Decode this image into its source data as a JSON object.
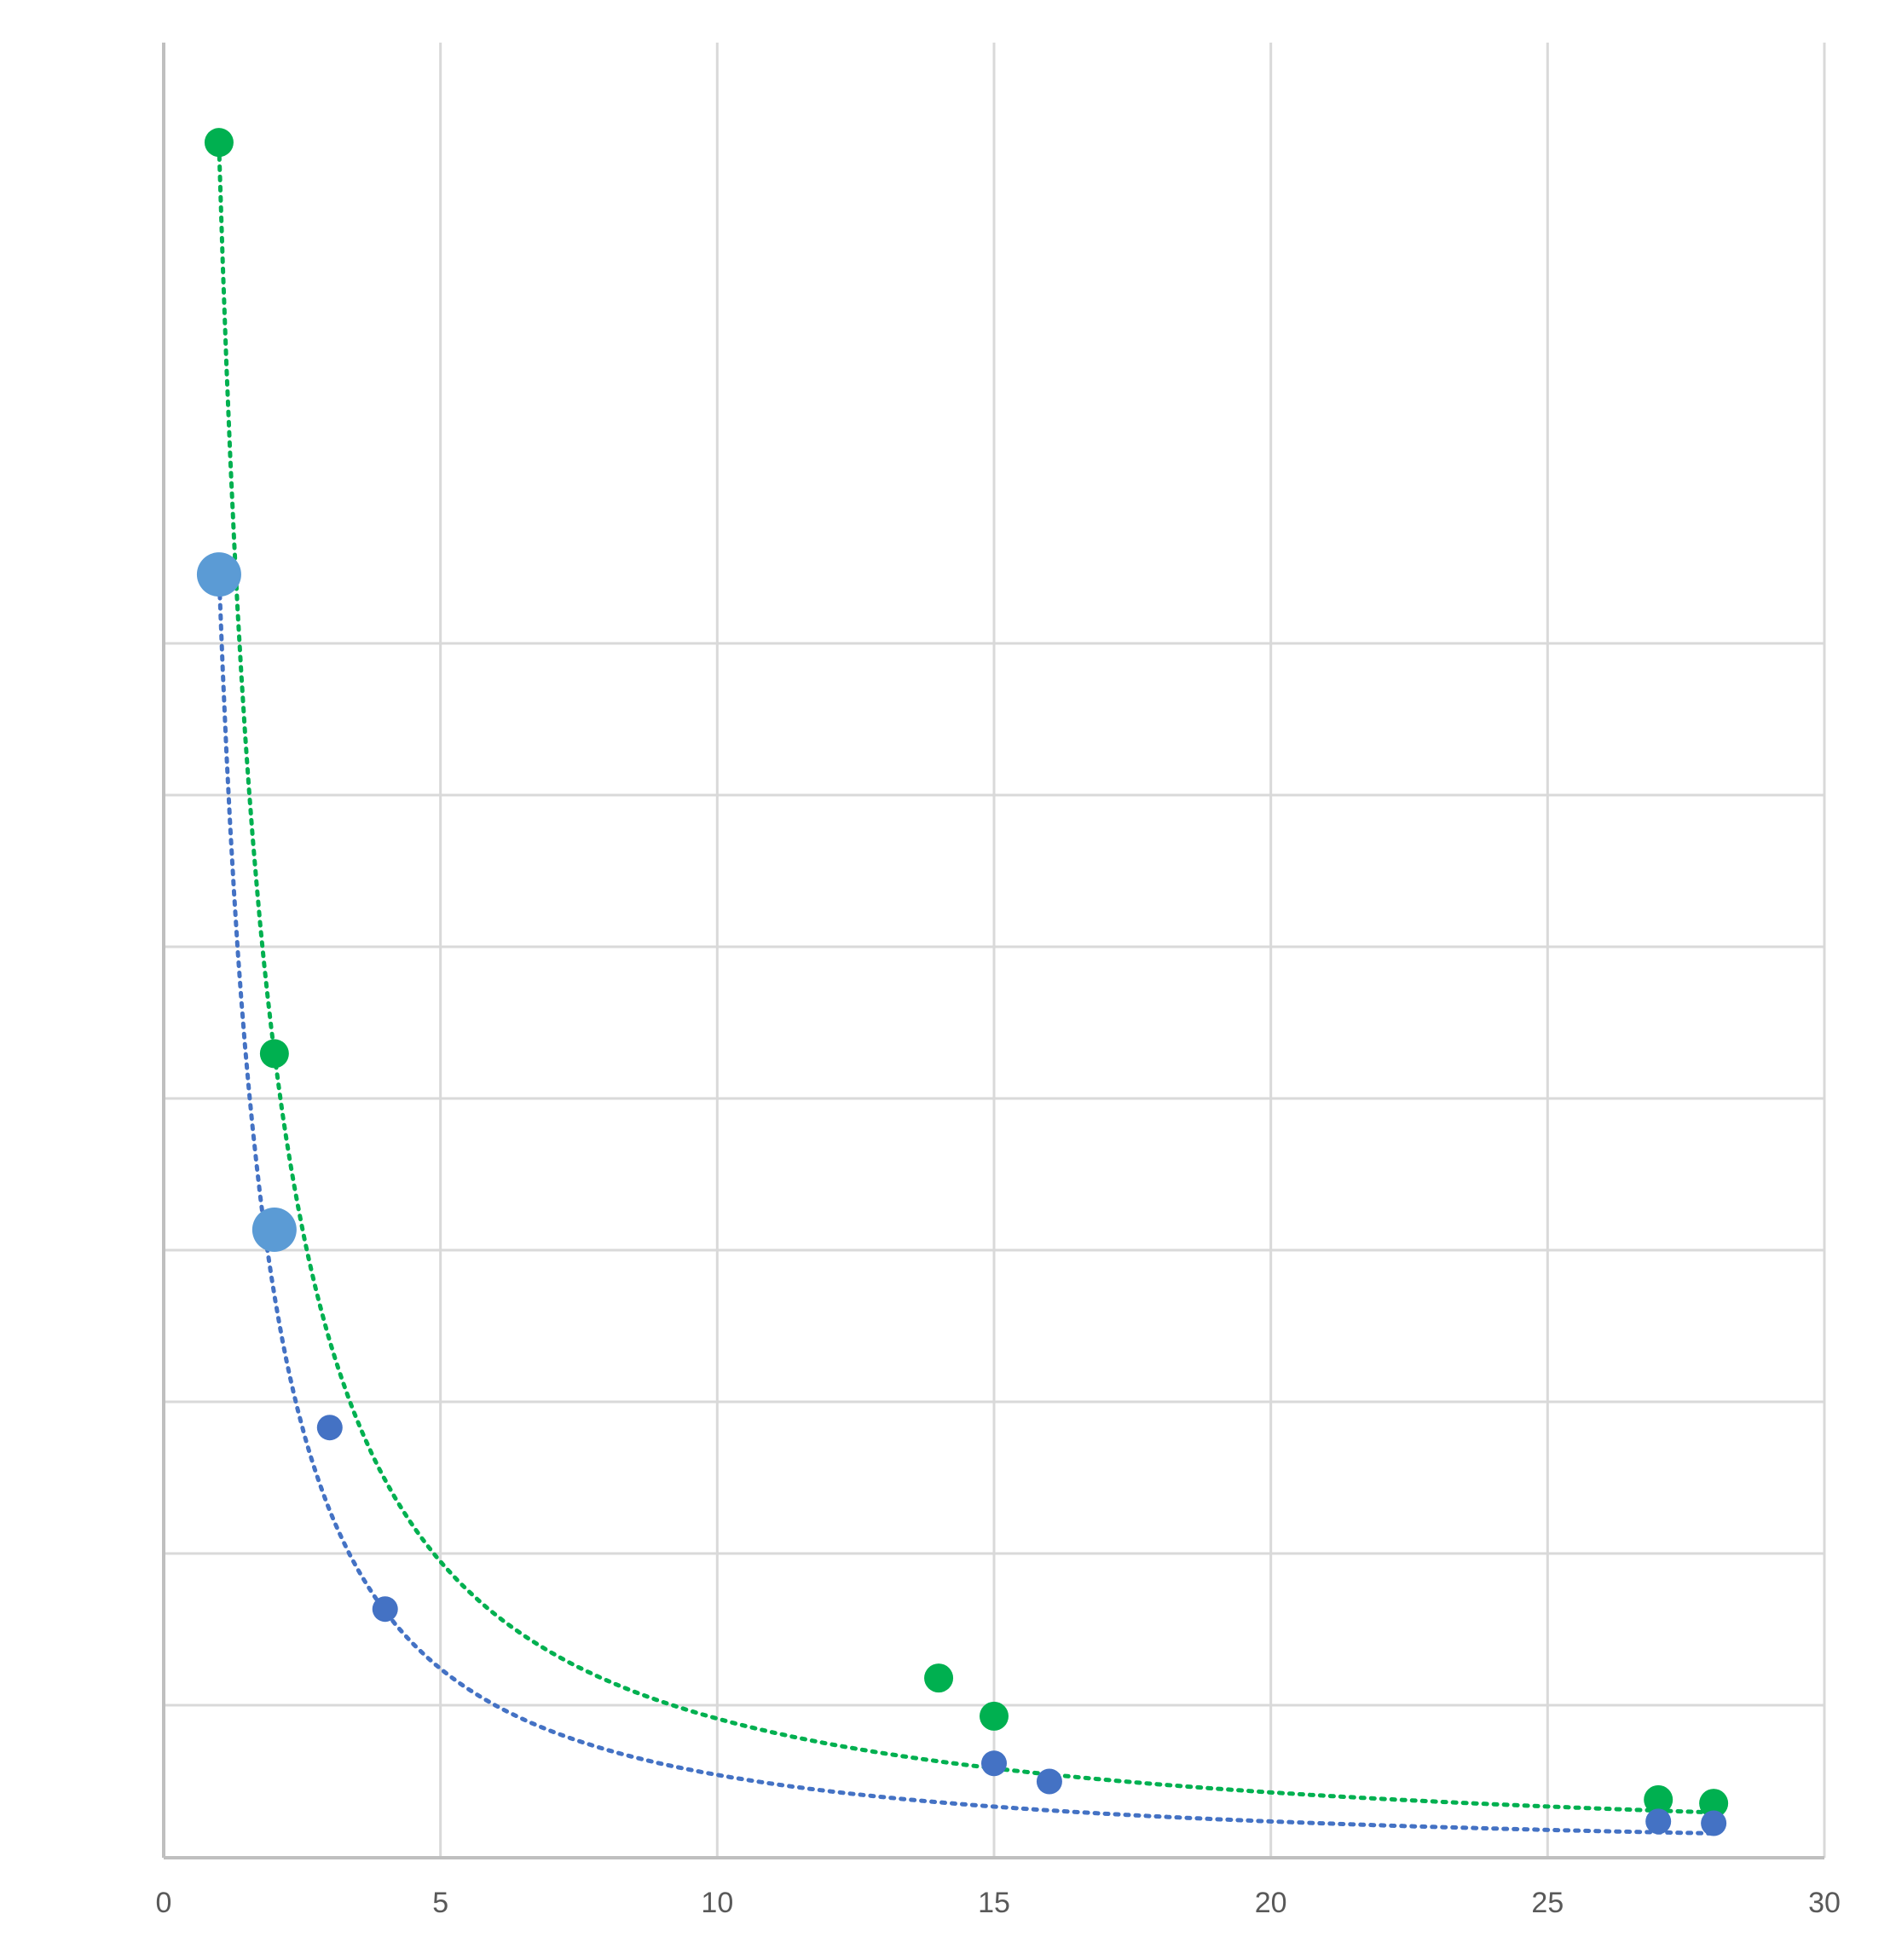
{
  "chart_data": {
    "type": "scatter",
    "title": "",
    "xlabel": "",
    "ylabel": "",
    "xlim": [
      0,
      30
    ],
    "ylim": [
      0,
      1
    ],
    "x_ticks": [
      "0",
      "5",
      "10",
      "15",
      "20",
      "25",
      "30"
    ],
    "y_tick_labels_shown": false,
    "grid": true,
    "legend": "none",
    "series": [
      {
        "color": "#00b050",
        "marker": "circle",
        "trendline": {
          "type": "power",
          "style": "dotted",
          "color": "#00b050",
          "a": 0.943,
          "b": -1.09
        },
        "points": [
          {
            "x": 1,
            "y": 0.945
          },
          {
            "x": 2,
            "y": 0.443
          },
          {
            "x": 14,
            "y": 0.099
          },
          {
            "x": 15,
            "y": 0.078
          },
          {
            "x": 27,
            "y": 0.032
          },
          {
            "x": 28,
            "y": 0.03
          }
        ]
      },
      {
        "color": "#4472c4",
        "marker": "circle",
        "trendline": {
          "type": "power",
          "style": "dotted",
          "color": "#4472c4",
          "a": 0.707,
          "b": -1.19
        },
        "points": [
          {
            "x": 1,
            "y": 0.707,
            "color": "#5b9bd5",
            "highlight": true
          },
          {
            "x": 2,
            "y": 0.346,
            "color": "#5b9bd5",
            "highlight": true
          },
          {
            "x": 3,
            "y": 0.237
          },
          {
            "x": 4,
            "y": 0.137
          },
          {
            "x": 15,
            "y": 0.052
          },
          {
            "x": 16,
            "y": 0.042
          },
          {
            "x": 27,
            "y": 0.02
          },
          {
            "x": 28,
            "y": 0.019
          }
        ]
      }
    ]
  }
}
